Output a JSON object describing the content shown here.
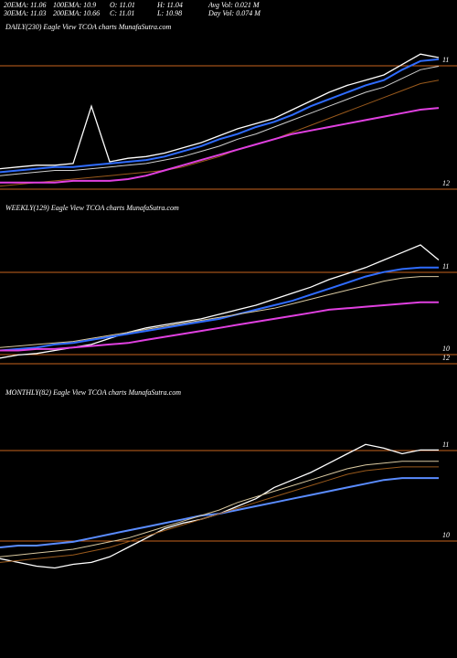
{
  "header": {
    "row1": [
      "20EMA: 11.06",
      "100EMA: 10.9",
      "O: 11.01",
      "H: 11.04",
      "Avg Vol: 0.021 M"
    ],
    "row2": [
      "30EMA: 11.03",
      "200EMA: 10.66",
      "C: 11.01",
      "L: 10.98",
      "Day Vol: 0.074 M"
    ]
  },
  "chart_data": [
    {
      "type": "line",
      "title": "DAILY(230) Eagle  View  TCOA charts MunafaSutra.com",
      "ylim": [
        0,
        100
      ],
      "level_labels": [
        "11",
        "12"
      ],
      "series": [
        {
          "color": "#ffffff",
          "values": [
            16,
            17,
            18,
            18,
            19,
            52,
            20,
            22,
            23,
            25,
            28,
            31,
            35,
            39,
            42,
            45,
            50,
            55,
            60,
            64,
            67,
            70,
            76,
            82,
            80
          ]
        },
        {
          "color": "#2f6cff",
          "values": [
            14,
            15,
            16,
            17,
            17,
            18,
            19,
            20,
            21,
            23,
            26,
            29,
            33,
            36,
            40,
            43,
            47,
            52,
            56,
            60,
            64,
            67,
            73,
            78,
            79
          ]
        },
        {
          "color": "#cfcfcf",
          "values": [
            12,
            13,
            14,
            15,
            15,
            16,
            17,
            18,
            19,
            21,
            23,
            26,
            29,
            33,
            36,
            40,
            44,
            48,
            52,
            56,
            60,
            63,
            68,
            73,
            75
          ]
        },
        {
          "color": "#9a5a1c",
          "values": [
            6,
            7,
            8,
            9,
            10,
            11,
            12,
            13,
            14,
            15,
            17,
            20,
            23,
            27,
            30,
            33,
            37,
            41,
            45,
            49,
            53,
            57,
            61,
            65,
            67
          ]
        },
        {
          "color": "#e040e0",
          "values": [
            8,
            8,
            8,
            8,
            9,
            9,
            9,
            10,
            12,
            15,
            18,
            21,
            24,
            27,
            30,
            33,
            36,
            38,
            40,
            42,
            44,
            46,
            48,
            50,
            51
          ]
        }
      ]
    },
    {
      "type": "line",
      "title": "WEEKLY(129) Eagle  View  TCOA charts MunafaSutra.com",
      "ylim": [
        0,
        100
      ],
      "level_labels": [
        "11",
        "10",
        "12"
      ],
      "series": [
        {
          "color": "#ffffff",
          "values": [
            5,
            7,
            8,
            10,
            12,
            14,
            18,
            22,
            25,
            27,
            29,
            31,
            34,
            37,
            40,
            44,
            48,
            52,
            57,
            61,
            65,
            70,
            75,
            80,
            70
          ]
        },
        {
          "color": "#2f6cff",
          "values": [
            10,
            11,
            12,
            14,
            15,
            17,
            19,
            21,
            23,
            25,
            27,
            29,
            31,
            34,
            37,
            40,
            43,
            47,
            51,
            55,
            59,
            62,
            64,
            65,
            65
          ]
        },
        {
          "color": "#d8c8a0",
          "values": [
            12,
            13,
            14,
            15,
            16,
            18,
            20,
            22,
            24,
            26,
            28,
            30,
            32,
            34,
            36,
            38,
            41,
            44,
            47,
            50,
            53,
            56,
            58,
            59,
            59
          ]
        },
        {
          "color": "#e040e0",
          "values": [
            10,
            10,
            11,
            11,
            12,
            13,
            14,
            15,
            17,
            19,
            21,
            23,
            25,
            27,
            29,
            31,
            33,
            35,
            37,
            38,
            39,
            40,
            41,
            42,
            42
          ]
        }
      ]
    },
    {
      "type": "line",
      "title": "MONTHLY(82) Eagle  View  TCOA charts MunafaSutra.com",
      "ylim": [
        0,
        100
      ],
      "level_labels": [
        "11",
        "10"
      ],
      "series": [
        {
          "color": "#ffffff",
          "values": [
            14,
            12,
            10,
            9,
            11,
            12,
            15,
            20,
            25,
            30,
            33,
            35,
            38,
            42,
            46,
            52,
            56,
            60,
            65,
            70,
            75,
            73,
            70,
            72,
            72
          ]
        },
        {
          "color": "#5a8cff",
          "values": [
            20,
            21,
            21,
            22,
            23,
            25,
            27,
            29,
            31,
            33,
            35,
            37,
            38,
            40,
            42,
            44,
            46,
            48,
            50,
            52,
            54,
            56,
            57,
            57,
            57
          ]
        },
        {
          "color": "#d8c8a0",
          "values": [
            15,
            16,
            17,
            18,
            19,
            21,
            23,
            25,
            28,
            31,
            34,
            37,
            40,
            44,
            47,
            50,
            53,
            56,
            59,
            62,
            64,
            65,
            66,
            66,
            66
          ]
        },
        {
          "color": "#9a5a1c",
          "values": [
            12,
            13,
            14,
            15,
            16,
            18,
            20,
            23,
            26,
            29,
            32,
            35,
            38,
            41,
            44,
            47,
            50,
            53,
            56,
            59,
            61,
            62,
            63,
            63,
            63
          ]
        }
      ]
    }
  ]
}
